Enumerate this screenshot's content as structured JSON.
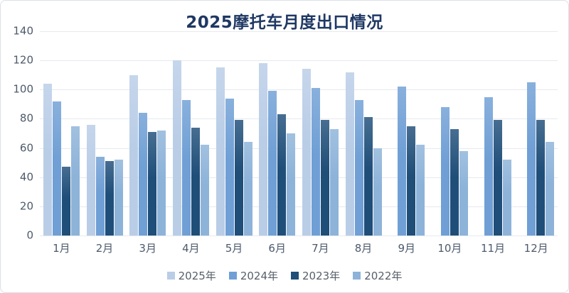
{
  "chart_data": {
    "type": "bar",
    "title": "2025摩托车月度出口情况",
    "categories": [
      "1月",
      "2月",
      "3月",
      "4月",
      "5月",
      "6月",
      "7月",
      "8月",
      "9月",
      "10月",
      "11月",
      "12月"
    ],
    "series": [
      {
        "name": "2025年",
        "color": "#b9cde7",
        "values": [
          104,
          76,
          110,
          120,
          115,
          118,
          114,
          112,
          null,
          null,
          null,
          null
        ]
      },
      {
        "name": "2024年",
        "color": "#6f9fd5",
        "values": [
          92,
          54,
          84,
          93,
          94,
          99,
          101,
          93,
          102,
          88,
          95,
          105
        ]
      },
      {
        "name": "2023年",
        "color": "#1f4e79",
        "values": [
          47,
          51,
          71,
          74,
          79,
          83,
          79,
          81,
          75,
          73,
          79,
          79
        ]
      },
      {
        "name": "2022年",
        "color": "#8db3d9",
        "values": [
          75,
          52,
          72,
          62,
          64,
          70,
          73,
          60,
          62,
          58,
          52,
          64
        ]
      }
    ],
    "xlabel": "",
    "ylabel": "",
    "ylim": [
      0,
      140
    ],
    "yticks": [
      0,
      20,
      40,
      60,
      80,
      100,
      120,
      140
    ],
    "grid": true,
    "legend_position": "bottom",
    "title_color": "#1f3864",
    "tick_label_color": "#4d5a6b",
    "legend_text_color": "#565f6a",
    "gridline_color": "#e6e9ed",
    "background_color": "#ffffff"
  }
}
